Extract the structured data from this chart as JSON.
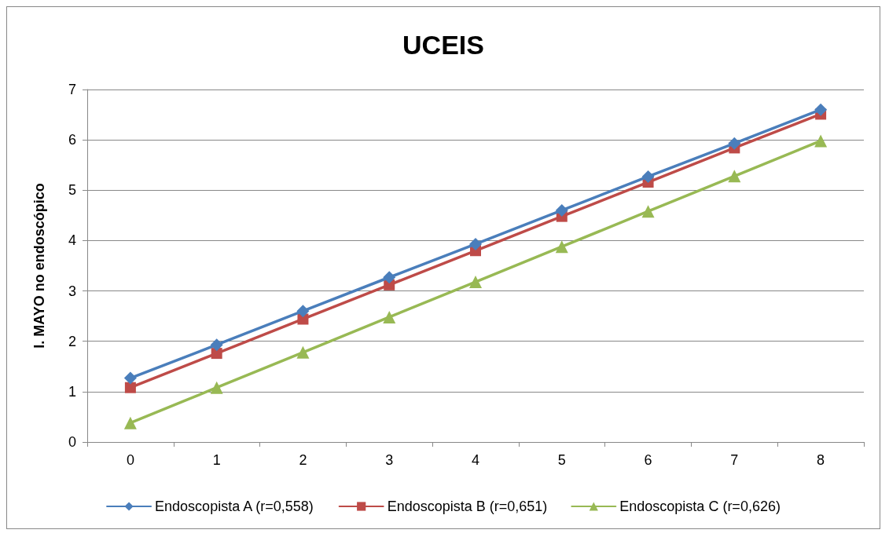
{
  "chart_data": {
    "type": "line",
    "title": "UCEIS",
    "ylabel": "I. MAYO no endoscópico",
    "categories": [
      "0",
      "1",
      "2",
      "3",
      "4",
      "5",
      "6",
      "7",
      "8"
    ],
    "series": [
      {
        "name": "Endoscopista A (r=0,558)",
        "color": "#4a7ebb",
        "marker": "diamond",
        "values": [
          1.27,
          1.93,
          2.6,
          3.27,
          3.93,
          4.6,
          5.27,
          5.93,
          6.6
        ]
      },
      {
        "name": "Endoscopista B (r=0,651)",
        "color": "#be4b48",
        "marker": "square",
        "values": [
          1.08,
          1.76,
          2.44,
          3.12,
          3.8,
          4.48,
          5.16,
          5.84,
          6.51
        ]
      },
      {
        "name": "Endoscopista C (r=0,626)",
        "color": "#98b954",
        "marker": "triangle",
        "values": [
          0.38,
          1.08,
          1.78,
          2.48,
          3.18,
          3.88,
          4.58,
          5.28,
          5.98
        ]
      }
    ],
    "ylim": [
      0,
      7
    ],
    "yticks": [
      0,
      1,
      2,
      3,
      4,
      5,
      6,
      7
    ],
    "grid": "y",
    "legend": "bottom",
    "line_style": "solid"
  }
}
